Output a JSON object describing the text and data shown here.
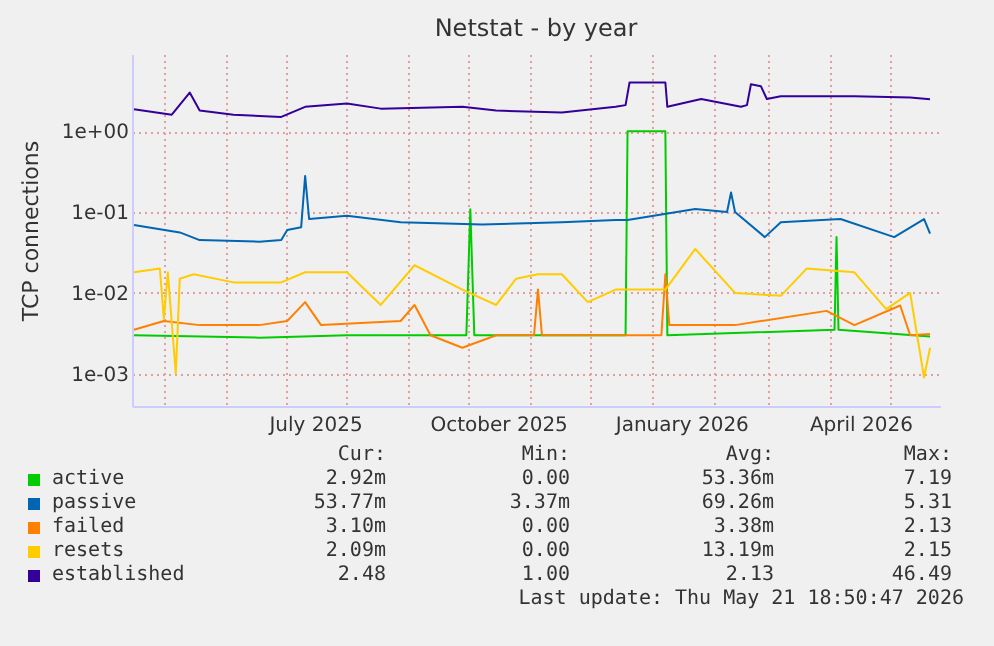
{
  "chart_data": {
    "type": "line",
    "title": "Netstat - by year",
    "ylabel": "TCP connections",
    "log": "y",
    "grid": true,
    "legend": "bottom",
    "xlim": [
      "2025-04-15",
      "2026-05-26"
    ],
    "xticks": [
      {
        "value": "2025-05-01",
        "label": null
      },
      {
        "value": "2025-06-01",
        "label": null
      },
      {
        "value": "2025-07-01",
        "label": null
      },
      {
        "value": "2025-07-16",
        "label": "July 2025"
      },
      {
        "value": "2025-08-01",
        "label": null
      },
      {
        "value": "2025-09-01",
        "label": null
      },
      {
        "value": "2025-10-01",
        "label": null
      },
      {
        "value": "2025-10-16",
        "label": "October 2025"
      },
      {
        "value": "2025-11-01",
        "label": null
      },
      {
        "value": "2025-12-01",
        "label": null
      },
      {
        "value": "2026-01-01",
        "label": null
      },
      {
        "value": "2026-01-16",
        "label": "January 2026"
      },
      {
        "value": "2026-02-01",
        "label": null
      },
      {
        "value": "2026-03-01",
        "label": null
      },
      {
        "value": "2026-04-01",
        "label": null
      },
      {
        "value": "2026-04-16",
        "label": "April 2026"
      },
      {
        "value": "2026-05-01",
        "label": null
      }
    ],
    "ylim": [
      0.0004,
      9
    ],
    "yticks": [
      {
        "value": 0.001,
        "label": "1e-03"
      },
      {
        "value": 0.01,
        "label": "1e-02"
      },
      {
        "value": 0.1,
        "label": "1e-01"
      },
      {
        "value": 1,
        "label": "1e+00"
      }
    ],
    "series": [
      {
        "name": "active",
        "color": "#00cc00",
        "x": [
          "2025-04-16",
          "2025-06-18",
          "2025-08-01",
          "2025-09-30",
          "2025-10-02",
          "2025-10-04",
          "2025-12-19",
          "2025-12-20",
          "2026-01-08",
          "2026-01-09",
          "2026-04-03",
          "2026-04-04",
          "2026-04-05",
          "2026-05-21"
        ],
        "values": [
          0.003,
          0.0028,
          0.003,
          0.003,
          0.108,
          0.003,
          0.003,
          1.0,
          1.0,
          0.003,
          0.0035,
          0.049,
          0.0035,
          0.0029
        ]
      },
      {
        "name": "passive",
        "color": "#0066b3",
        "x": [
          "2025-04-16",
          "2025-05-09",
          "2025-05-19",
          "2025-06-18",
          "2025-06-29",
          "2025-07-02",
          "2025-07-09",
          "2025-07-11",
          "2025-07-13",
          "2025-08-01",
          "2025-08-28",
          "2025-10-08",
          "2025-11-17",
          "2025-12-14",
          "2025-12-20",
          "2026-01-23",
          "2026-02-08",
          "2026-02-10",
          "2026-02-12",
          "2026-02-27",
          "2026-03-07",
          "2026-04-06",
          "2026-05-03",
          "2026-05-18",
          "2026-05-21"
        ],
        "values": [
          0.069,
          0.056,
          0.045,
          0.043,
          0.045,
          0.06,
          0.065,
          0.28,
          0.082,
          0.09,
          0.075,
          0.07,
          0.075,
          0.08,
          0.08,
          0.109,
          0.1,
          0.175,
          0.1,
          0.049,
          0.075,
          0.082,
          0.049,
          0.082,
          0.054
        ]
      },
      {
        "name": "failed",
        "color": "#ff8000",
        "x": [
          "2025-04-16",
          "2025-05-01",
          "2025-05-19",
          "2025-06-18",
          "2025-07-02",
          "2025-07-11",
          "2025-07-19",
          "2025-08-28",
          "2025-09-04",
          "2025-09-12",
          "2025-09-28",
          "2025-10-15",
          "2025-11-03",
          "2025-11-05",
          "2025-11-07",
          "2025-12-14",
          "2026-01-06",
          "2026-01-08",
          "2026-01-10",
          "2026-02-12",
          "2026-03-30",
          "2026-04-13",
          "2026-05-06",
          "2026-05-11",
          "2026-05-21"
        ],
        "values": [
          0.0035,
          0.0045,
          0.004,
          0.004,
          0.0045,
          0.0077,
          0.004,
          0.0045,
          0.0071,
          0.003,
          0.0021,
          0.003,
          0.003,
          0.011,
          0.003,
          0.003,
          0.003,
          0.017,
          0.004,
          0.004,
          0.006,
          0.004,
          0.007,
          0.003,
          0.0031
        ]
      },
      {
        "name": "resets",
        "color": "#ffcc00",
        "x": [
          "2025-04-16",
          "2025-04-29",
          "2025-05-01",
          "2025-05-03",
          "2025-05-07",
          "2025-05-09",
          "2025-05-16",
          "2025-06-05",
          "2025-06-29",
          "2025-07-11",
          "2025-08-01",
          "2025-08-18",
          "2025-09-04",
          "2025-09-28",
          "2025-10-15",
          "2025-10-25",
          "2025-11-05",
          "2025-11-17",
          "2025-11-30",
          "2025-12-14",
          "2026-01-08",
          "2026-01-23",
          "2026-02-12",
          "2026-03-07",
          "2026-03-20",
          "2026-04-13",
          "2026-04-29",
          "2026-05-11",
          "2026-05-18",
          "2026-05-21"
        ],
        "values": [
          0.018,
          0.02,
          0.0048,
          0.018,
          0.001,
          0.015,
          0.017,
          0.0135,
          0.0135,
          0.018,
          0.018,
          0.0071,
          0.022,
          0.011,
          0.0071,
          0.015,
          0.017,
          0.017,
          0.0077,
          0.011,
          0.011,
          0.035,
          0.01,
          0.0092,
          0.02,
          0.018,
          0.0063,
          0.01,
          0.0009,
          0.0021
        ]
      },
      {
        "name": "established",
        "color": "#330099",
        "x": [
          "2025-04-16",
          "2025-05-05",
          "2025-05-14",
          "2025-05-19",
          "2025-06-05",
          "2025-06-29",
          "2025-07-11",
          "2025-08-01",
          "2025-08-18",
          "2025-09-28",
          "2025-10-15",
          "2025-11-17",
          "2025-12-14",
          "2025-12-19",
          "2025-12-21",
          "2026-01-08",
          "2026-01-09",
          "2026-01-26",
          "2026-02-15",
          "2026-02-18",
          "2026-02-20",
          "2026-02-25",
          "2026-02-28",
          "2026-03-07",
          "2026-04-13",
          "2026-05-11",
          "2026-05-21"
        ],
        "values": [
          1.87,
          1.6,
          3.0,
          1.8,
          1.6,
          1.5,
          2.0,
          2.2,
          1.9,
          2.0,
          1.8,
          1.7,
          2.0,
          2.1,
          4.0,
          4.0,
          2.0,
          2.5,
          2.0,
          2.1,
          3.8,
          3.6,
          2.5,
          2.7,
          2.7,
          2.6,
          2.48
        ]
      }
    ],
    "annotations": [
      "Cur:",
      "Min:",
      "Avg:",
      "Max:",
      "2.92m",
      "0.00",
      "53.36m",
      "7.19",
      "53.77m",
      "3.37m",
      "69.26m",
      "5.31",
      "3.10m",
      "0.00",
      "3.38m",
      "2.13",
      "2.09m",
      "0.00",
      "13.19m",
      "2.15",
      "2.48",
      "1.00",
      "2.13",
      "46.49",
      "Last update: Thu May 21 18:50:47 2026"
    ]
  }
}
